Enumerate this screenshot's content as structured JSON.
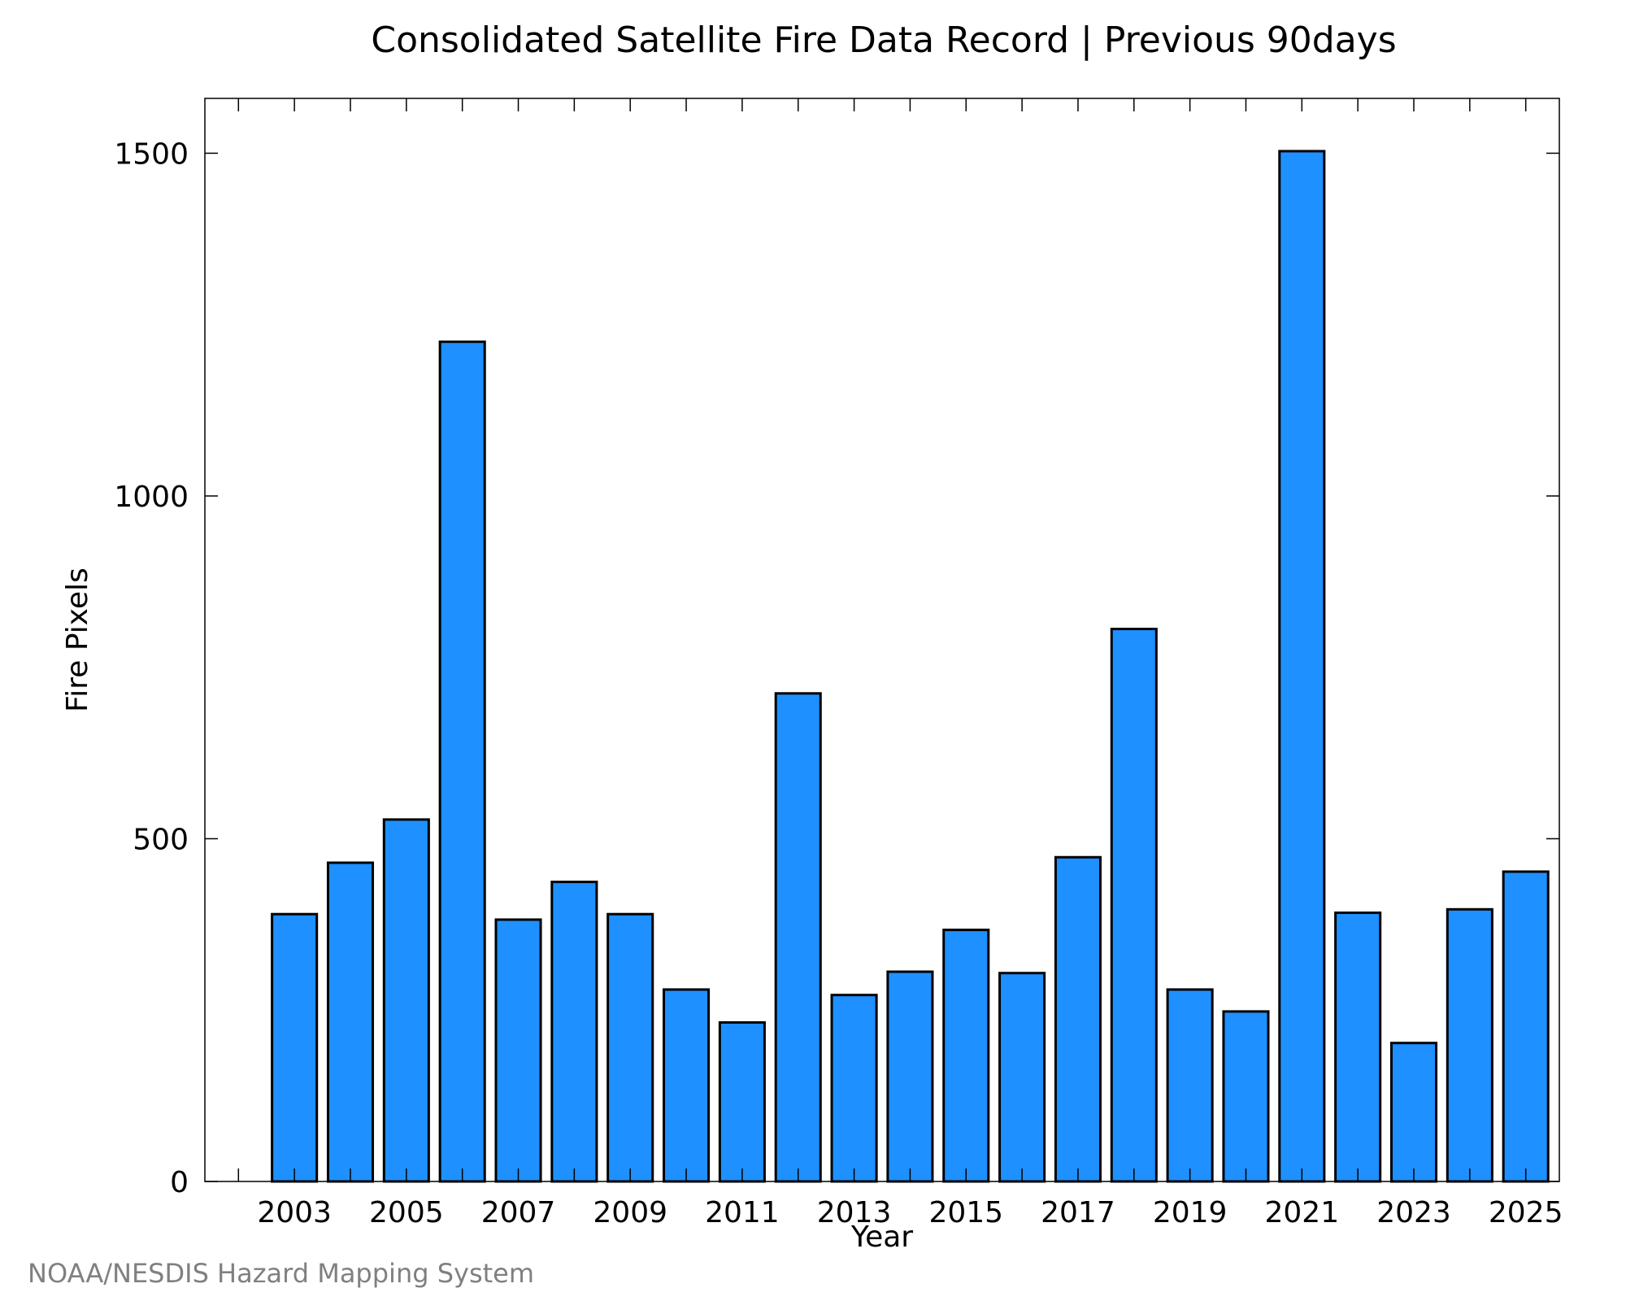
{
  "chart_data": {
    "type": "bar",
    "title": "Consolidated Satellite Fire Data Record | Previous 90days",
    "xlabel": "Year",
    "ylabel": "Fire Pixels",
    "ylim": [
      0,
      1580
    ],
    "xlim": [
      2001.4,
      2025.6
    ],
    "yticks": [
      0,
      500,
      1000,
      1500
    ],
    "xticks": [
      2003,
      2005,
      2007,
      2009,
      2011,
      2013,
      2015,
      2017,
      2019,
      2021,
      2023,
      2025
    ],
    "categories": [
      2003,
      2004,
      2005,
      2006,
      2007,
      2008,
      2009,
      2010,
      2011,
      2012,
      2013,
      2014,
      2015,
      2016,
      2017,
      2018,
      2019,
      2020,
      2021,
      2022,
      2023,
      2024,
      2025
    ],
    "values": [
      390,
      465,
      528,
      1225,
      382,
      437,
      390,
      280,
      232,
      712,
      272,
      306,
      367,
      304,
      473,
      806,
      280,
      248,
      1503,
      392,
      202,
      397,
      452
    ],
    "grid": false,
    "bar_color": "#1e90ff",
    "bar_edge_color": "#000000"
  },
  "credit": {
    "text": "NOAA/NESDIS Hazard Mapping System",
    "color": "#808080"
  }
}
